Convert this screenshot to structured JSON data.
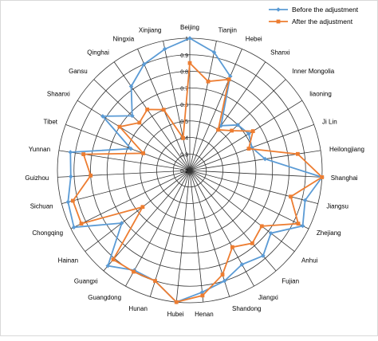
{
  "chart_data": {
    "type": "radar",
    "title": "",
    "categories": [
      "Beijing",
      "Tianjin",
      "Hebei",
      "Shanxi",
      "Inner Mongolia",
      "liaoning",
      "Ji Lin",
      "Heilongjiang",
      "Shanghai",
      "Jiangsu",
      "Zhejiang",
      "Anhui",
      "Fujian",
      "Jiangxi",
      "Shandong",
      "Henan",
      "Hubei",
      "Hunan",
      "Guangdong",
      "Guangxi",
      "Hainan",
      "Chongqing",
      "Sichuan",
      "Guizhou",
      "Yunnan",
      "Tibet",
      "Shaanxi",
      "Gansu",
      "Qinghai",
      "Ningxia",
      "Xinjiang"
    ],
    "radial_range": [
      0.2,
      1.0
    ],
    "radial_ticks": [
      "0.2",
      "0.3",
      "0.4",
      "0.5",
      "0.6",
      "0.7",
      "0.8",
      "0.9",
      "1"
    ],
    "legend_position": "top-right",
    "series": [
      {
        "name": "Before the adjustment",
        "color": "#5B9BD5",
        "marker": "diamond",
        "values": [
          1.0,
          0.93,
          0.82,
          0.53,
          0.6,
          0.62,
          0.6,
          0.66,
          1.0,
          0.92,
          0.96,
          0.82,
          0.88,
          0.85,
          0.9,
          0.94,
          1.0,
          0.9,
          0.89,
          0.96,
          0.72,
          0.98,
          0.96,
          0.92,
          0.93,
          0.58,
          0.82,
          0.68,
          0.82,
          0.9,
          0.95
        ]
      },
      {
        "name": "After the adjustment",
        "color": "#ED7D31",
        "marker": "square",
        "values": [
          0.85,
          0.75,
          0.8,
          0.5,
          0.55,
          0.65,
          0.58,
          0.86,
          1.0,
          0.83,
          0.93,
          0.75,
          0.78,
          0.73,
          0.86,
          0.96,
          1.0,
          0.9,
          0.9,
          0.91,
          0.56,
          0.93,
          0.93,
          0.8,
          0.85,
          0.5,
          0.7,
          0.62,
          0.65,
          0.6,
          0.4
        ]
      }
    ]
  }
}
